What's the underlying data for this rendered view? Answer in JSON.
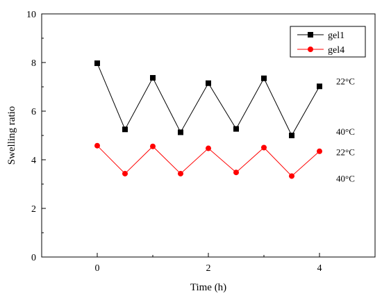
{
  "chart_data": {
    "type": "line",
    "xlabel": "Time (h)",
    "ylabel": "Swelling ratio",
    "xlim": [
      -1,
      5
    ],
    "ylim": [
      0,
      10
    ],
    "x_ticks": [
      0,
      2,
      4
    ],
    "y_ticks": [
      0,
      2,
      4,
      6,
      8,
      10
    ],
    "legend_position": "top-right",
    "series": [
      {
        "name": "gel1",
        "color": "#000000",
        "marker": "square",
        "x": [
          0,
          0.5,
          1,
          1.5,
          2,
          2.5,
          3,
          3.5,
          4
        ],
        "y": [
          7.97,
          5.25,
          7.37,
          5.13,
          7.15,
          5.27,
          7.35,
          5.0,
          7.02
        ]
      },
      {
        "name": "gel4",
        "color": "#ff0000",
        "marker": "circle",
        "x": [
          0,
          0.5,
          1,
          1.5,
          2,
          2.5,
          3,
          3.5,
          4
        ],
        "y": [
          4.58,
          3.43,
          4.55,
          3.43,
          4.47,
          3.48,
          4.5,
          3.33,
          4.35
        ]
      }
    ],
    "annotations": [
      {
        "text": "22°C",
        "x": 4.3,
        "y": 7.22
      },
      {
        "text": "40°C",
        "x": 4.3,
        "y": 5.15
      },
      {
        "text": "22°C",
        "x": 4.3,
        "y": 4.3
      },
      {
        "text": "40°C",
        "x": 4.3,
        "y": 3.22
      }
    ]
  }
}
